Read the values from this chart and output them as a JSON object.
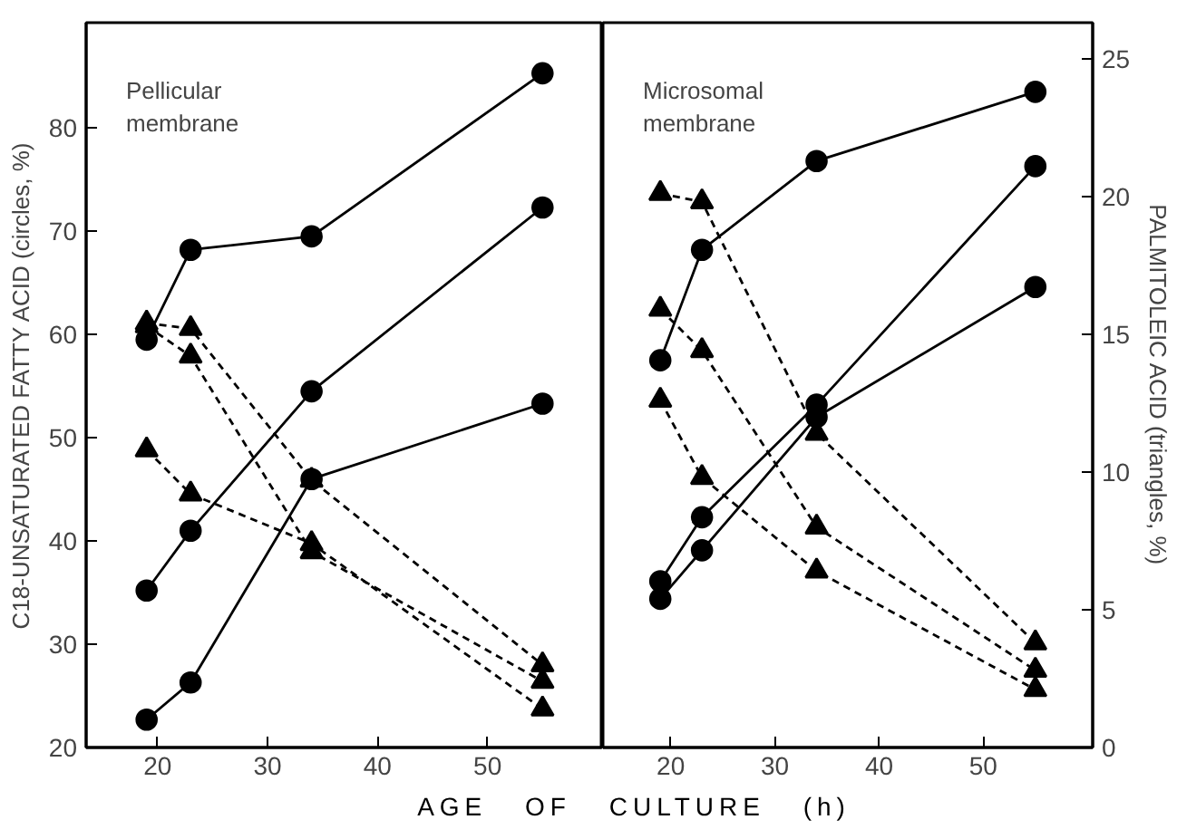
{
  "chart_data": [
    {
      "type": "line",
      "title": "Pellicular\nmembrane",
      "xlabel": "AGE OF CULTURE (h)",
      "ylabel": "C18-UNSATURATED FATTY ACID (circles, %)",
      "x": [
        19,
        23,
        34,
        55
      ],
      "xlim": [
        13.5,
        60.5
      ],
      "xticks": [
        20,
        30,
        40,
        50
      ],
      "ylim": [
        20,
        90.2
      ],
      "yticks": [
        20,
        30,
        40,
        50,
        60,
        70,
        80
      ],
      "y2lim": [
        0,
        26.3
      ],
      "grid": false,
      "series": [
        {
          "color": "#000000",
          "marker": "circle",
          "line_style": "solid",
          "values": [
            59.5,
            68.2,
            69.5,
            85.3
          ]
        },
        {
          "color": "#000000",
          "marker": "circle",
          "line_style": "solid",
          "values": [
            35.2,
            41,
            54.5,
            72.3
          ]
        },
        {
          "color": "#000000",
          "marker": "circle",
          "line_style": "solid",
          "values": [
            22.7,
            26.3,
            46,
            53.3
          ]
        },
        {
          "color": "#000000",
          "marker": "triangle",
          "line_style": "dashed",
          "axis": "y2",
          "values": [
            10.8,
            9.2,
            7.4,
            1.4
          ]
        },
        {
          "color": "#000000",
          "marker": "triangle",
          "line_style": "dashed",
          "axis": "y2",
          "values": [
            15.3,
            14.2,
            7.1,
            2.4
          ]
        },
        {
          "color": "#000000",
          "marker": "triangle",
          "line_style": "dashed",
          "axis": "y2",
          "values": [
            15.4,
            15.2,
            9.7,
            3.0
          ]
        }
      ]
    },
    {
      "type": "line",
      "title": "Microsomal\nmembrane",
      "y2label": "PALMITOLEIC ACID (triangles, %)",
      "x": [
        19,
        23,
        34,
        55
      ],
      "xlim": [
        13.5,
        60.5
      ],
      "xticks": [
        20,
        30,
        40,
        50
      ],
      "ylim": [
        20,
        90.2
      ],
      "y2lim": [
        0,
        26.3
      ],
      "y2ticks": [
        0,
        5,
        10,
        15,
        20,
        25
      ],
      "grid": false,
      "series": [
        {
          "color": "#000000",
          "marker": "circle",
          "line_style": "solid",
          "values": [
            57.5,
            68.2,
            76.8,
            83.5
          ]
        },
        {
          "color": "#000000",
          "marker": "circle",
          "line_style": "solid",
          "values": [
            36.1,
            42.3,
            53.2,
            76.3
          ]
        },
        {
          "color": "#000000",
          "marker": "circle",
          "line_style": "solid",
          "values": [
            34.4,
            39.1,
            52,
            64.6
          ]
        },
        {
          "color": "#000000",
          "marker": "triangle",
          "line_style": "dashed",
          "axis": "y2",
          "values": [
            20.1,
            19.8,
            11.4,
            3.8
          ]
        },
        {
          "color": "#000000",
          "marker": "triangle",
          "line_style": "dashed",
          "axis": "y2",
          "values": [
            15.9,
            14.4,
            8.0,
            2.8
          ]
        },
        {
          "color": "#000000",
          "marker": "triangle",
          "line_style": "dashed",
          "axis": "y2",
          "values": [
            12.6,
            9.8,
            6.4,
            2.1
          ]
        }
      ]
    }
  ]
}
